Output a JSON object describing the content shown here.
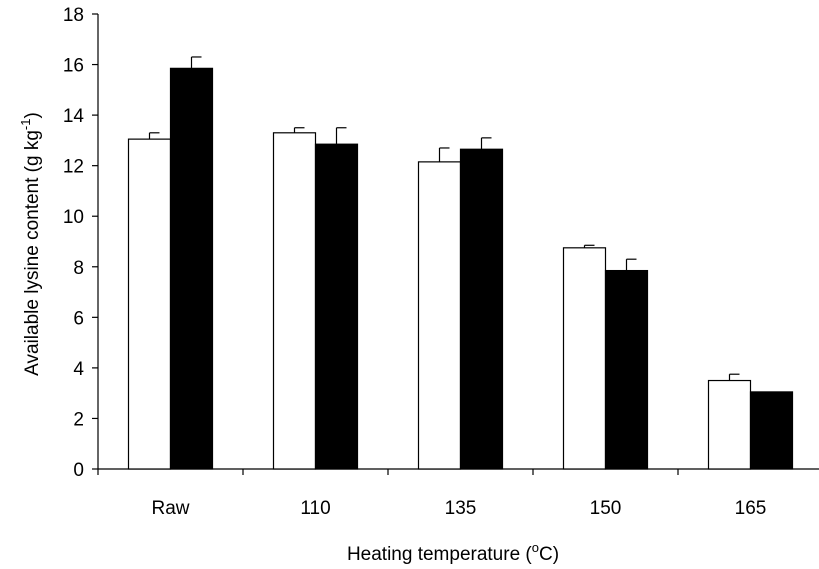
{
  "chart_data": {
    "type": "bar",
    "categories": [
      "Raw",
      "110",
      "135",
      "150",
      "165"
    ],
    "series": [
      {
        "fill": "open",
        "color": "#ffffff",
        "values": [
          13.05,
          13.3,
          12.15,
          8.75,
          3.5
        ],
        "errors": [
          0.25,
          0.2,
          0.55,
          0.1,
          0.25
        ]
      },
      {
        "fill": "solid",
        "color": "#000000",
        "values": [
          15.85,
          12.85,
          12.65,
          7.85,
          3.05
        ],
        "errors": [
          0.45,
          0.65,
          0.45,
          0.45,
          0.0
        ]
      }
    ],
    "xlabel": {
      "pre": "Heating temperature (",
      "sup": "o",
      "post": "C)"
    },
    "ylabel": {
      "pre": "Available lysine content (g kg",
      "sup": "-1",
      "post": ")"
    },
    "ylim": [
      0,
      18
    ],
    "yticks": [
      "0",
      "2",
      "4",
      "6",
      "8",
      "10",
      "12",
      "14",
      "16",
      "18"
    ],
    "grid": false,
    "legend": "none"
  }
}
